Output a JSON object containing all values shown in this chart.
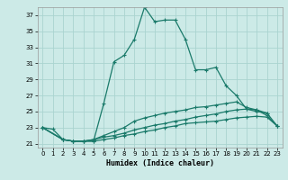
{
  "title": "",
  "xlabel": "Humidex (Indice chaleur)",
  "ylabel": "",
  "background_color": "#cceae7",
  "grid_color": "#aad4d0",
  "line_color": "#1a7a6a",
  "xlim": [
    -0.5,
    23.5
  ],
  "ylim": [
    20.5,
    38.0
  ],
  "yticks": [
    21,
    23,
    25,
    27,
    29,
    31,
    33,
    35,
    37
  ],
  "xticks": [
    0,
    1,
    2,
    3,
    4,
    5,
    6,
    7,
    8,
    9,
    10,
    11,
    12,
    13,
    14,
    15,
    16,
    17,
    18,
    19,
    20,
    21,
    22,
    23
  ],
  "curves": [
    {
      "x": [
        0,
        1,
        2,
        3,
        4,
        5,
        6,
        7,
        8,
        9,
        10,
        11,
        12,
        13,
        14,
        15,
        16,
        17,
        18,
        19,
        20,
        21,
        22
      ],
      "y": [
        23.0,
        22.8,
        21.5,
        21.3,
        21.3,
        21.3,
        26.0,
        31.2,
        32.0,
        34.0,
        38.0,
        36.2,
        36.4,
        36.4,
        34.0,
        30.2,
        30.2,
        30.5,
        28.2,
        27.0,
        25.3,
        25.0,
        24.8
      ]
    },
    {
      "x": [
        0,
        2,
        3,
        4,
        5,
        6,
        7,
        8,
        9,
        10,
        11,
        12,
        13,
        14,
        15,
        16,
        17,
        18,
        19,
        20,
        21,
        22,
        23
      ],
      "y": [
        23.0,
        21.5,
        21.3,
        21.3,
        21.5,
        22.0,
        22.5,
        23.0,
        23.8,
        24.2,
        24.5,
        24.8,
        25.0,
        25.2,
        25.5,
        25.6,
        25.8,
        26.0,
        26.2,
        25.5,
        25.2,
        24.8,
        23.2
      ]
    },
    {
      "x": [
        0,
        2,
        3,
        4,
        5,
        6,
        7,
        8,
        9,
        10,
        11,
        12,
        13,
        14,
        15,
        16,
        17,
        18,
        19,
        20,
        21,
        22,
        23
      ],
      "y": [
        23.0,
        21.5,
        21.3,
        21.3,
        21.5,
        21.8,
        22.0,
        22.3,
        22.7,
        23.0,
        23.3,
        23.5,
        23.8,
        24.0,
        24.3,
        24.5,
        24.7,
        25.0,
        25.2,
        25.3,
        25.2,
        24.5,
        23.2
      ]
    },
    {
      "x": [
        0,
        2,
        3,
        4,
        5,
        6,
        7,
        8,
        9,
        10,
        11,
        12,
        13,
        14,
        15,
        16,
        17,
        18,
        19,
        20,
        21,
        22,
        23
      ],
      "y": [
        23.0,
        21.5,
        21.3,
        21.3,
        21.3,
        21.5,
        21.7,
        22.0,
        22.2,
        22.5,
        22.7,
        23.0,
        23.2,
        23.5,
        23.6,
        23.7,
        23.8,
        24.0,
        24.2,
        24.3,
        24.4,
        24.3,
        23.2
      ]
    }
  ]
}
